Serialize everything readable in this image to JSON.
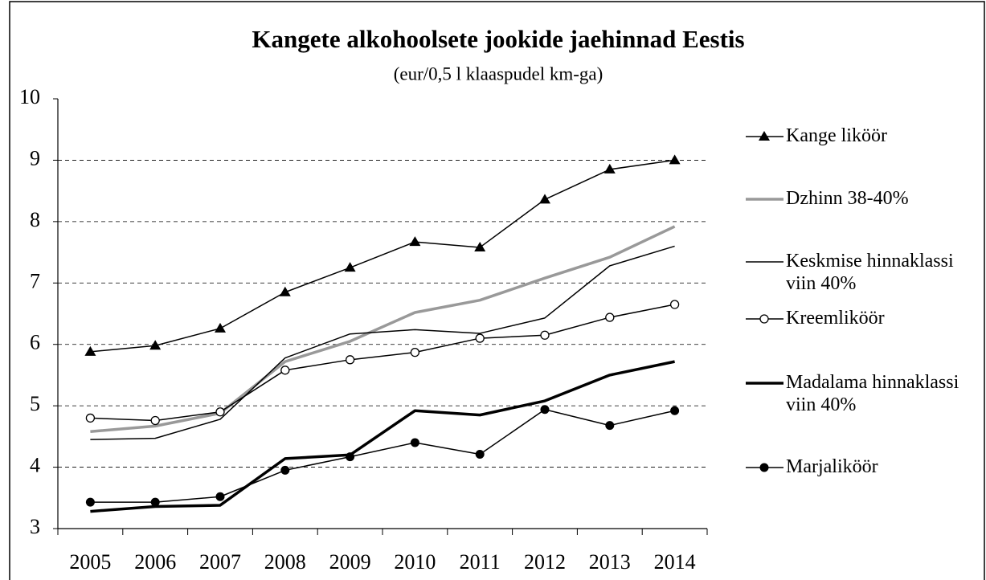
{
  "chart_data": {
    "type": "line",
    "title": "Kangete alkohoolsete jookide jaehinnad Eestis",
    "subtitle": "(eur/0,5 l klaaspudel km-ga)",
    "categories": [
      "2005",
      "2006",
      "2007",
      "2008",
      "2009",
      "2010",
      "2011",
      "2012",
      "2013",
      "2014"
    ],
    "series": [
      {
        "name": "Kange liköör",
        "color": "#000000",
        "marker": "triangle",
        "line_width": 1.5,
        "values": [
          5.88,
          5.98,
          6.26,
          6.85,
          7.25,
          7.67,
          7.58,
          8.36,
          8.85,
          9.0
        ]
      },
      {
        "name": "Dzhinn 38-40%",
        "color": "#999999",
        "marker": "none",
        "line_width": 3.5,
        "values": [
          4.58,
          4.67,
          4.88,
          5.72,
          6.05,
          6.52,
          6.72,
          7.08,
          7.42,
          7.92
        ]
      },
      {
        "name": "Keskmise hinnaklassi viin 40%",
        "color": "#000000",
        "marker": "none",
        "line_width": 1.5,
        "values": [
          4.45,
          4.47,
          4.78,
          5.78,
          6.17,
          6.24,
          6.18,
          6.43,
          7.28,
          7.6
        ]
      },
      {
        "name": "Kreemliköör",
        "color": "#000000",
        "marker": "open-circle",
        "line_width": 1.5,
        "values": [
          4.8,
          4.76,
          4.9,
          5.58,
          5.75,
          5.87,
          6.1,
          6.15,
          6.44,
          6.65
        ]
      },
      {
        "name": "Madalama hinnaklassi viin 40%",
        "color": "#000000",
        "marker": "none",
        "line_width": 3.5,
        "values": [
          3.28,
          3.36,
          3.38,
          4.14,
          4.2,
          4.92,
          4.85,
          5.08,
          5.5,
          5.72
        ]
      },
      {
        "name": "Marjaliköör",
        "color": "#000000",
        "marker": "filled-circle",
        "line_width": 1.5,
        "values": [
          3.43,
          3.43,
          3.52,
          3.95,
          4.17,
          4.4,
          4.21,
          4.94,
          4.68,
          4.92
        ]
      }
    ],
    "ylim": [
      3,
      10
    ],
    "yticks": [
      3,
      4,
      5,
      6,
      7,
      8,
      9,
      10
    ],
    "grid": true,
    "legend": "right"
  }
}
